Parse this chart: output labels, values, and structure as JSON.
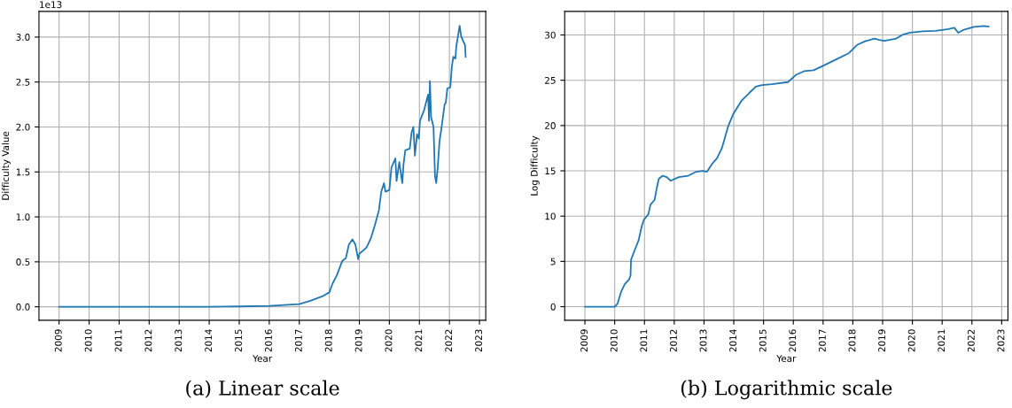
{
  "chart_data": [
    {
      "type": "line",
      "title": "(a) Linear scale",
      "xlabel": "Year",
      "ylabel": "Difficulty Value",
      "annotations": [
        "1e13"
      ],
      "grid": true,
      "xlim": [
        2008.33,
        2023.21
      ],
      "xticks": [
        2009,
        2010,
        2011,
        2012,
        2013,
        2014,
        2015,
        2016,
        2017,
        2018,
        2019,
        2020,
        2021,
        2022,
        2023
      ],
      "ylim": [
        -0.15,
        3.285
      ],
      "yticks": [
        {
          "value": 0,
          "label": "0.0"
        },
        {
          "value": 0.5,
          "label": "0.5"
        },
        {
          "value": 1,
          "label": "1.0"
        },
        {
          "value": 1.5,
          "label": "1.5"
        },
        {
          "value": 2,
          "label": "2.0"
        },
        {
          "value": 2.5,
          "label": "2.5"
        },
        {
          "value": 3,
          "label": "3.0"
        }
      ],
      "series": [
        {
          "color": "#1f77b4",
          "x": [
            2009.0,
            2014.0,
            2015.0,
            2016.0,
            2016.5,
            2017.0,
            2017.37,
            2017.76,
            2018.0,
            2018.11,
            2018.25,
            2018.43,
            2018.55,
            2018.65,
            2018.77,
            2018.87,
            2018.96,
            2019.0,
            2019.24,
            2019.38,
            2019.51,
            2019.65,
            2019.73,
            2019.82,
            2019.87,
            2020.0,
            2020.07,
            2020.2,
            2020.24,
            2020.33,
            2020.43,
            2020.47,
            2020.53,
            2020.68,
            2020.74,
            2020.8,
            2020.85,
            2020.92,
            2020.98,
            2021.02,
            2021.15,
            2021.25,
            2021.29,
            2021.32,
            2021.35,
            2021.39,
            2021.47,
            2021.52,
            2021.56,
            2021.61,
            2021.67,
            2021.74,
            2021.84,
            2021.88,
            2021.93,
            2022.03,
            2022.08,
            2022.13,
            2022.2,
            2022.23,
            2022.27,
            2022.34,
            2022.39,
            2022.45,
            2022.52,
            2022.54
          ],
          "values": [
            0.0,
            0.0,
            0.004,
            0.01,
            0.02,
            0.03,
            0.066,
            0.115,
            0.16,
            0.26,
            0.35,
            0.51,
            0.54,
            0.69,
            0.75,
            0.69,
            0.53,
            0.59,
            0.66,
            0.76,
            0.9,
            1.07,
            1.28,
            1.375,
            1.28,
            1.3,
            1.55,
            1.65,
            1.4,
            1.61,
            1.375,
            1.58,
            1.74,
            1.76,
            1.94,
            2.0,
            1.68,
            1.92,
            1.87,
            2.07,
            2.18,
            2.31,
            2.36,
            2.07,
            2.51,
            2.11,
            2.0,
            1.45,
            1.375,
            1.55,
            1.84,
            2.0,
            2.25,
            2.27,
            2.43,
            2.44,
            2.67,
            2.78,
            2.76,
            2.9,
            2.98,
            3.125,
            3.01,
            2.96,
            2.91,
            2.78
          ]
        }
      ]
    },
    {
      "type": "line",
      "title": "(b) Logarithmic scale",
      "xlabel": "Year",
      "ylabel": "Log Difficulty",
      "grid": true,
      "xlim": [
        2008.32,
        2023.21
      ],
      "xticks": [
        2009,
        2010,
        2011,
        2012,
        2013,
        2014,
        2015,
        2016,
        2017,
        2018,
        2019,
        2020,
        2021,
        2022,
        2023
      ],
      "ylim": [
        -1.5,
        32.6
      ],
      "yticks": [
        0,
        5,
        10,
        15,
        20,
        25,
        30
      ],
      "series": [
        {
          "color": "#1f77b4",
          "x": [
            2009.0,
            2010.0,
            2010.1,
            2010.21,
            2010.34,
            2010.48,
            2010.53,
            2010.55,
            2010.69,
            2010.8,
            2010.91,
            2010.98,
            2011.13,
            2011.2,
            2011.34,
            2011.42,
            2011.48,
            2011.61,
            2011.75,
            2011.88,
            2012.15,
            2012.47,
            2012.74,
            2012.96,
            2013.1,
            2013.28,
            2013.44,
            2013.6,
            2013.82,
            2013.98,
            2014.25,
            2014.52,
            2014.74,
            2014.95,
            2015.28,
            2015.82,
            2016.09,
            2016.36,
            2016.68,
            2017.0,
            2017.44,
            2017.87,
            2018.14,
            2018.41,
            2018.73,
            2018.89,
            2019.05,
            2019.43,
            2019.7,
            2019.92,
            2020.35,
            2020.78,
            2021.21,
            2021.41,
            2021.54,
            2021.7,
            2022.07,
            2022.4,
            2022.56
          ],
          "values": [
            0,
            0,
            0.36,
            1.6,
            2.5,
            3.0,
            3.4,
            5.2,
            6.4,
            7.3,
            8.9,
            9.6,
            10.2,
            11.25,
            11.8,
            13.2,
            14.1,
            14.46,
            14.3,
            13.9,
            14.3,
            14.46,
            14.9,
            15.0,
            14.9,
            15.8,
            16.4,
            17.5,
            20.0,
            21.25,
            22.7,
            23.6,
            24.3,
            24.46,
            24.57,
            24.8,
            25.6,
            26.0,
            26.1,
            26.6,
            27.3,
            28.0,
            28.9,
            29.3,
            29.6,
            29.46,
            29.36,
            29.57,
            30.07,
            30.25,
            30.4,
            30.46,
            30.64,
            30.8,
            30.25,
            30.54,
            30.9,
            31.0,
            30.93
          ]
        }
      ]
    }
  ]
}
